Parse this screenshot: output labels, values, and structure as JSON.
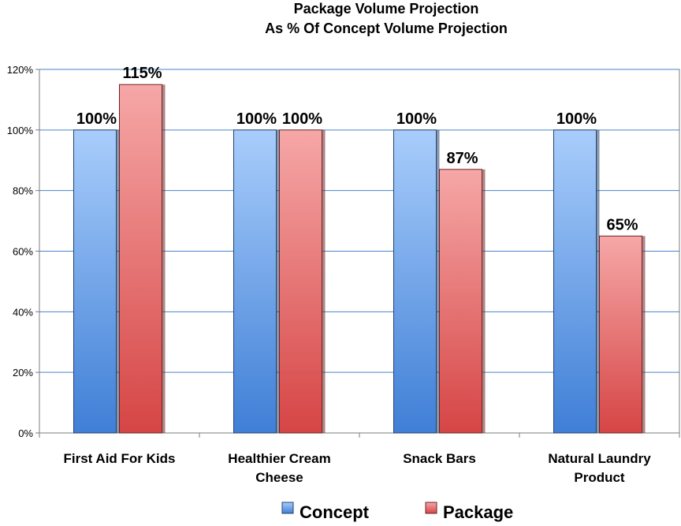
{
  "chart_data": {
    "type": "bar",
    "title": "Package Volume Projection",
    "subtitle": "As % Of Concept Volume Projection",
    "categories": [
      "First Aid For Kids",
      "Healthier Cream Cheese",
      "Snack Bars",
      "Natural Laundry Product"
    ],
    "category_lines": [
      [
        "First Aid For Kids"
      ],
      [
        "Healthier Cream",
        "Cheese"
      ],
      [
        "Snack Bars"
      ],
      [
        "Natural Laundry",
        "Product"
      ]
    ],
    "series": [
      {
        "name": "Concept",
        "values": [
          100,
          100,
          100,
          100
        ],
        "labels": [
          "100%",
          "100%",
          "100%",
          "100%"
        ],
        "color_light": "#a9cdfb",
        "color_dark": "#3f7fd6"
      },
      {
        "name": "Package",
        "values": [
          115,
          100,
          87,
          65
        ],
        "labels": [
          "115%",
          "100%",
          "87%",
          "65%"
        ],
        "color_light": "#f6a7a7",
        "color_dark": "#d64545"
      }
    ],
    "ylim": [
      0,
      120
    ],
    "yticks": [
      0,
      20,
      40,
      60,
      80,
      100,
      120
    ],
    "ytick_labels": [
      "0%",
      "20%",
      "40%",
      "60%",
      "80%",
      "100%",
      "120%"
    ],
    "xlabel": "",
    "ylabel": "",
    "grid": true,
    "legend": "bottom"
  }
}
